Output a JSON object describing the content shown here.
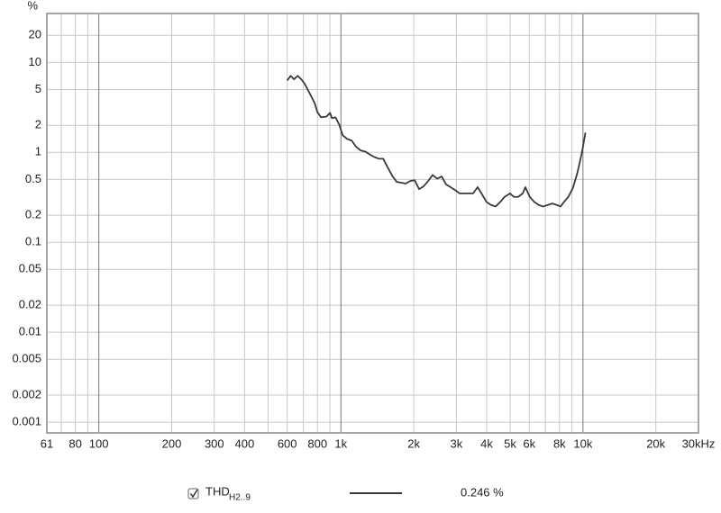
{
  "chart_data": {
    "type": "line",
    "ylabel": "%",
    "xscale": "log",
    "yscale": "log",
    "grid": true,
    "xlim": [
      61,
      30000
    ],
    "ylim": [
      0.00076,
      35
    ],
    "xticks": [
      61,
      80,
      100,
      200,
      300,
      400,
      600,
      800,
      {
        "value": 1000,
        "label": "1k"
      },
      {
        "value": 2000,
        "label": "2k"
      },
      {
        "value": 3000,
        "label": "3k"
      },
      {
        "value": 4000,
        "label": "4k"
      },
      {
        "value": 5000,
        "label": "5k"
      },
      {
        "value": 6000,
        "label": "6k"
      },
      {
        "value": 8000,
        "label": "8k"
      },
      {
        "value": 10000,
        "label": "10k"
      },
      {
        "value": 20000,
        "label": "20k"
      },
      {
        "value": 30000,
        "label": "30kHz"
      }
    ],
    "xminorticks": [
      70,
      90,
      500,
      700,
      900,
      7000,
      9000
    ],
    "yticks": [
      20,
      10,
      5,
      2,
      1,
      0.5,
      0.2,
      0.1,
      0.05,
      0.02,
      0.01,
      0.005,
      0.002,
      0.001
    ],
    "x": [
      600,
      620,
      640,
      663,
      686,
      710,
      729,
      754,
      780,
      800,
      828,
      872,
      902,
      918,
      950,
      983,
      1017,
      1062,
      1108,
      1157,
      1207,
      1260,
      1315,
      1373,
      1433,
      1495,
      1561,
      1629,
      1700,
      1774,
      1852,
      1933,
      2017,
      2105,
      2197,
      2293,
      2393,
      2498,
      2607,
      2721,
      2840,
      2964,
      3093,
      3229,
      3370,
      3517,
      3671,
      3831,
      3999,
      4173,
      4356,
      4546,
      4745,
      5000,
      5177,
      5403,
      5639,
      5780,
      6030,
      6300,
      6570,
      6860,
      7160,
      7470,
      7800,
      8080,
      8340,
      8700,
      9080,
      9480,
      9890,
      10240
    ],
    "series": [
      {
        "name": "THD",
        "name_sub": "H2..9",
        "color": "#3a3a3a",
        "readout": "0.246 %",
        "values": [
          6.3,
          7.1,
          6.5,
          7.1,
          6.5,
          5.75,
          5.0,
          4.2,
          3.5,
          2.8,
          2.45,
          2.5,
          2.75,
          2.4,
          2.45,
          2.05,
          1.55,
          1.41,
          1.35,
          1.15,
          1.05,
          1.02,
          0.95,
          0.89,
          0.85,
          0.85,
          0.68,
          0.55,
          0.47,
          0.46,
          0.45,
          0.48,
          0.49,
          0.39,
          0.42,
          0.48,
          0.56,
          0.51,
          0.54,
          0.44,
          0.41,
          0.38,
          0.35,
          0.35,
          0.35,
          0.35,
          0.41,
          0.34,
          0.28,
          0.26,
          0.25,
          0.28,
          0.32,
          0.35,
          0.32,
          0.32,
          0.35,
          0.41,
          0.32,
          0.28,
          0.26,
          0.25,
          0.26,
          0.27,
          0.26,
          0.25,
          0.28,
          0.32,
          0.4,
          0.59,
          0.98,
          1.66
        ]
      }
    ]
  }
}
